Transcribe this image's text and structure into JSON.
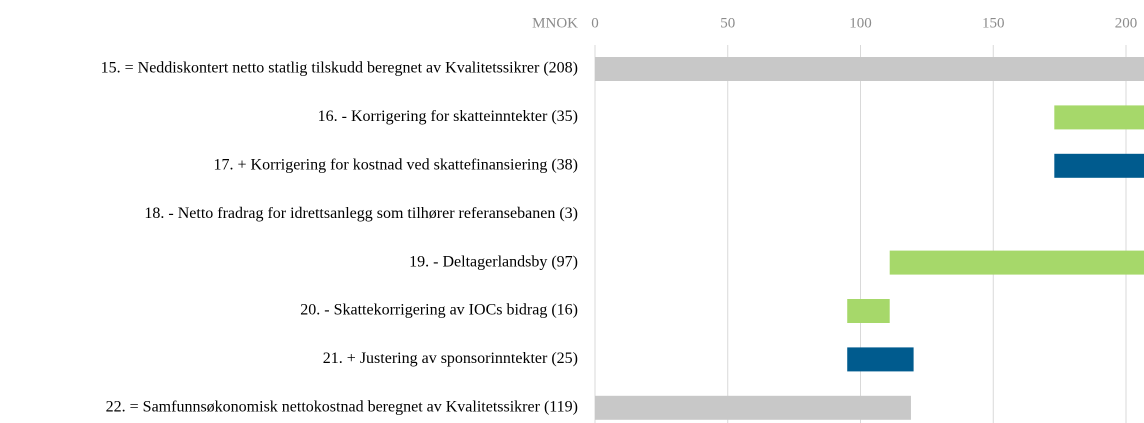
{
  "chart_data": {
    "type": "waterfall",
    "orientation": "horizontal",
    "xlabel": "MNOK",
    "categories": [
      "15. = Neddiskontert netto statlig tilskudd beregnet av Kvalitetssikrer  (208)",
      "16. - Korrigering for skatteinntekter  (35)",
      "17. +  Korrigering for kostnad ved skattefinansiering  (38)",
      "18. -  Netto fradrag for idrettsanlegg som tilhører referansebanen (3)",
      "19. -  Deltagerlandsby  (97)",
      "20. -  Skattekorrigering av IOCs bidrag  (16)",
      "21. + Justering av sponsorinntekter  (25)",
      "22. = Samfunnsøkonomisk nettokostnad beregnet av Kvalitetssikrer  (119)"
    ],
    "values": [
      208,
      -35,
      38,
      -3,
      -97,
      -16,
      25,
      119
    ],
    "total_color": "#c8c8c8",
    "increase_color": "#005b8e",
    "decrease_color": "#a6d86a",
    "xlim": [
      0,
      207
    ],
    "xticks": [
      0,
      50,
      100,
      150,
      200
    ],
    "grid": true
  }
}
